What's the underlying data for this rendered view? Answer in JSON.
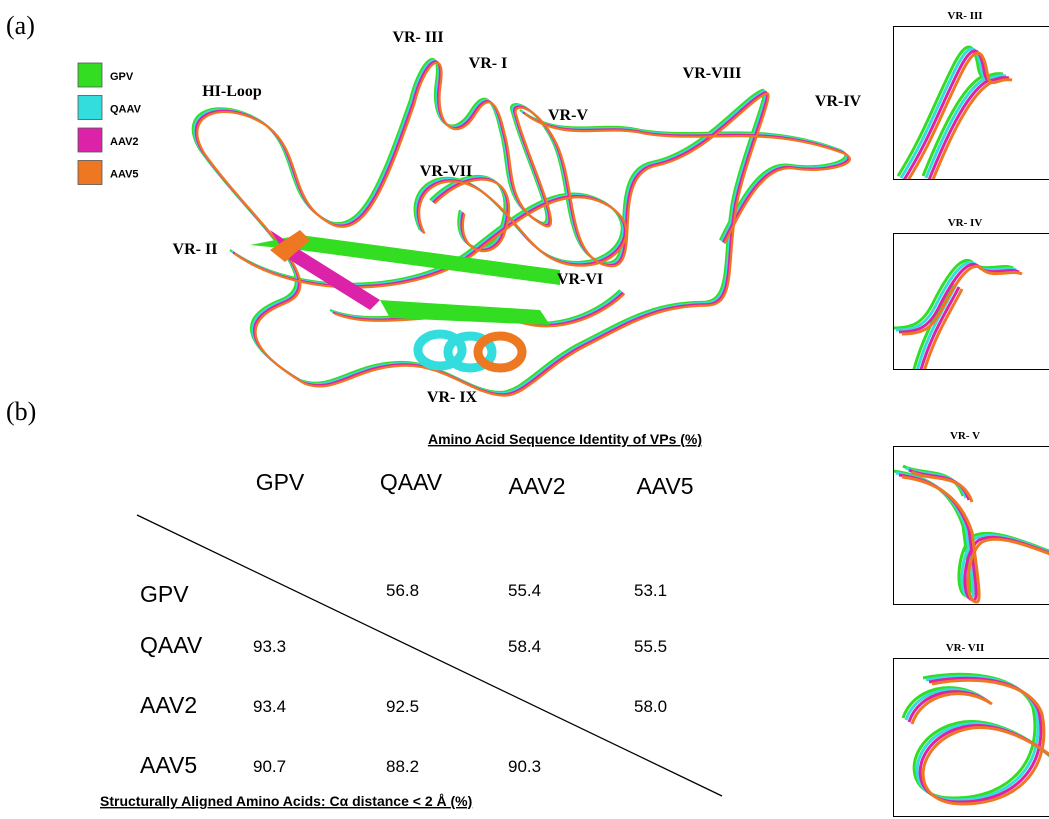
{
  "panel_a": {
    "label": "(a)",
    "legend": [
      {
        "name": "GPV",
        "color": "#33dd22"
      },
      {
        "name": "QAAV",
        "color": "#33dddd"
      },
      {
        "name": "AAV2",
        "color": "#dd22aa"
      },
      {
        "name": "AAV5",
        "color": "#ee7722"
      }
    ],
    "region_labels": [
      "VR- III",
      "VR- I",
      "HI-Loop",
      "VR-VIII",
      "VR-V",
      "VR-IV",
      "VR-VII",
      "VR- II",
      "VR-VI",
      "VR- IX"
    ],
    "insets": [
      "VR- III",
      "VR- IV",
      "VR- V",
      "VR- VII"
    ]
  },
  "panel_b": {
    "label": "(b)",
    "top_caption": "Amino Acid Sequence Identity of VPs (%)",
    "bottom_caption": "Structurally Aligned Amino Acids: Cα distance < 2 Å (%)",
    "columns": [
      "GPV",
      "QAAV",
      "AAV2",
      "AAV5"
    ],
    "rows": [
      {
        "label": "GPV",
        "cells": [
          null,
          "56.8",
          "55.4",
          "53.1"
        ]
      },
      {
        "label": "QAAV",
        "cells": [
          "93.3",
          null,
          "58.4",
          "55.5"
        ]
      },
      {
        "label": "AAV2",
        "cells": [
          "93.4",
          "92.5",
          null,
          "58.0"
        ]
      },
      {
        "label": "AAV5",
        "cells": [
          "90.7",
          "88.2",
          "90.3",
          null
        ]
      }
    ]
  }
}
